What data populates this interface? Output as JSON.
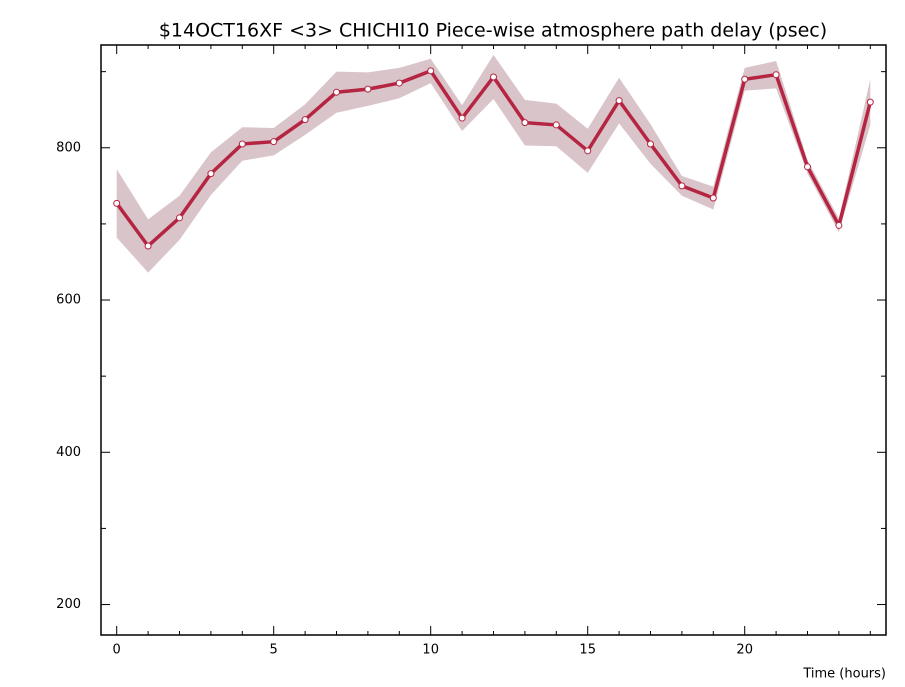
{
  "chart_data": {
    "type": "line",
    "title": "$14OCT16XF <3>   CHICHI10  Piece-wise atmosphere path delay (psec)",
    "x_label": "Time (hours)",
    "x": [
      0,
      1,
      2,
      3,
      4,
      5,
      6,
      7,
      8,
      9,
      10,
      11,
      12,
      13,
      14,
      15,
      16,
      17,
      18,
      19,
      20,
      21,
      22,
      23,
      24
    ],
    "series": [
      {
        "color": "#b52542",
        "band_color": "#d9c4c9",
        "values": [
          727,
          671,
          708,
          766,
          805,
          808,
          837,
          873,
          877,
          885,
          901,
          839,
          893,
          833,
          830,
          796,
          862,
          805,
          750,
          734,
          890,
          896,
          775,
          698,
          860
        ],
        "errors": [
          45,
          35,
          29,
          28,
          22,
          18,
          20,
          27,
          22,
          20,
          16,
          17,
          29,
          30,
          28,
          29,
          30,
          26,
          13,
          15,
          15,
          18,
          9,
          9,
          30
        ]
      }
    ],
    "xlim": [
      -0.5,
      24.5
    ],
    "ylim": [
      160,
      935
    ],
    "xticks": [
      0,
      5,
      10,
      15,
      20
    ],
    "xminorticks": [
      1,
      2,
      3,
      4,
      6,
      7,
      8,
      9,
      11,
      12,
      13,
      14,
      16,
      17,
      18,
      19,
      21,
      22,
      23,
      24
    ],
    "yticks": [
      200,
      400,
      600,
      800
    ],
    "yminorticks": [
      300,
      500,
      700,
      900
    ]
  }
}
